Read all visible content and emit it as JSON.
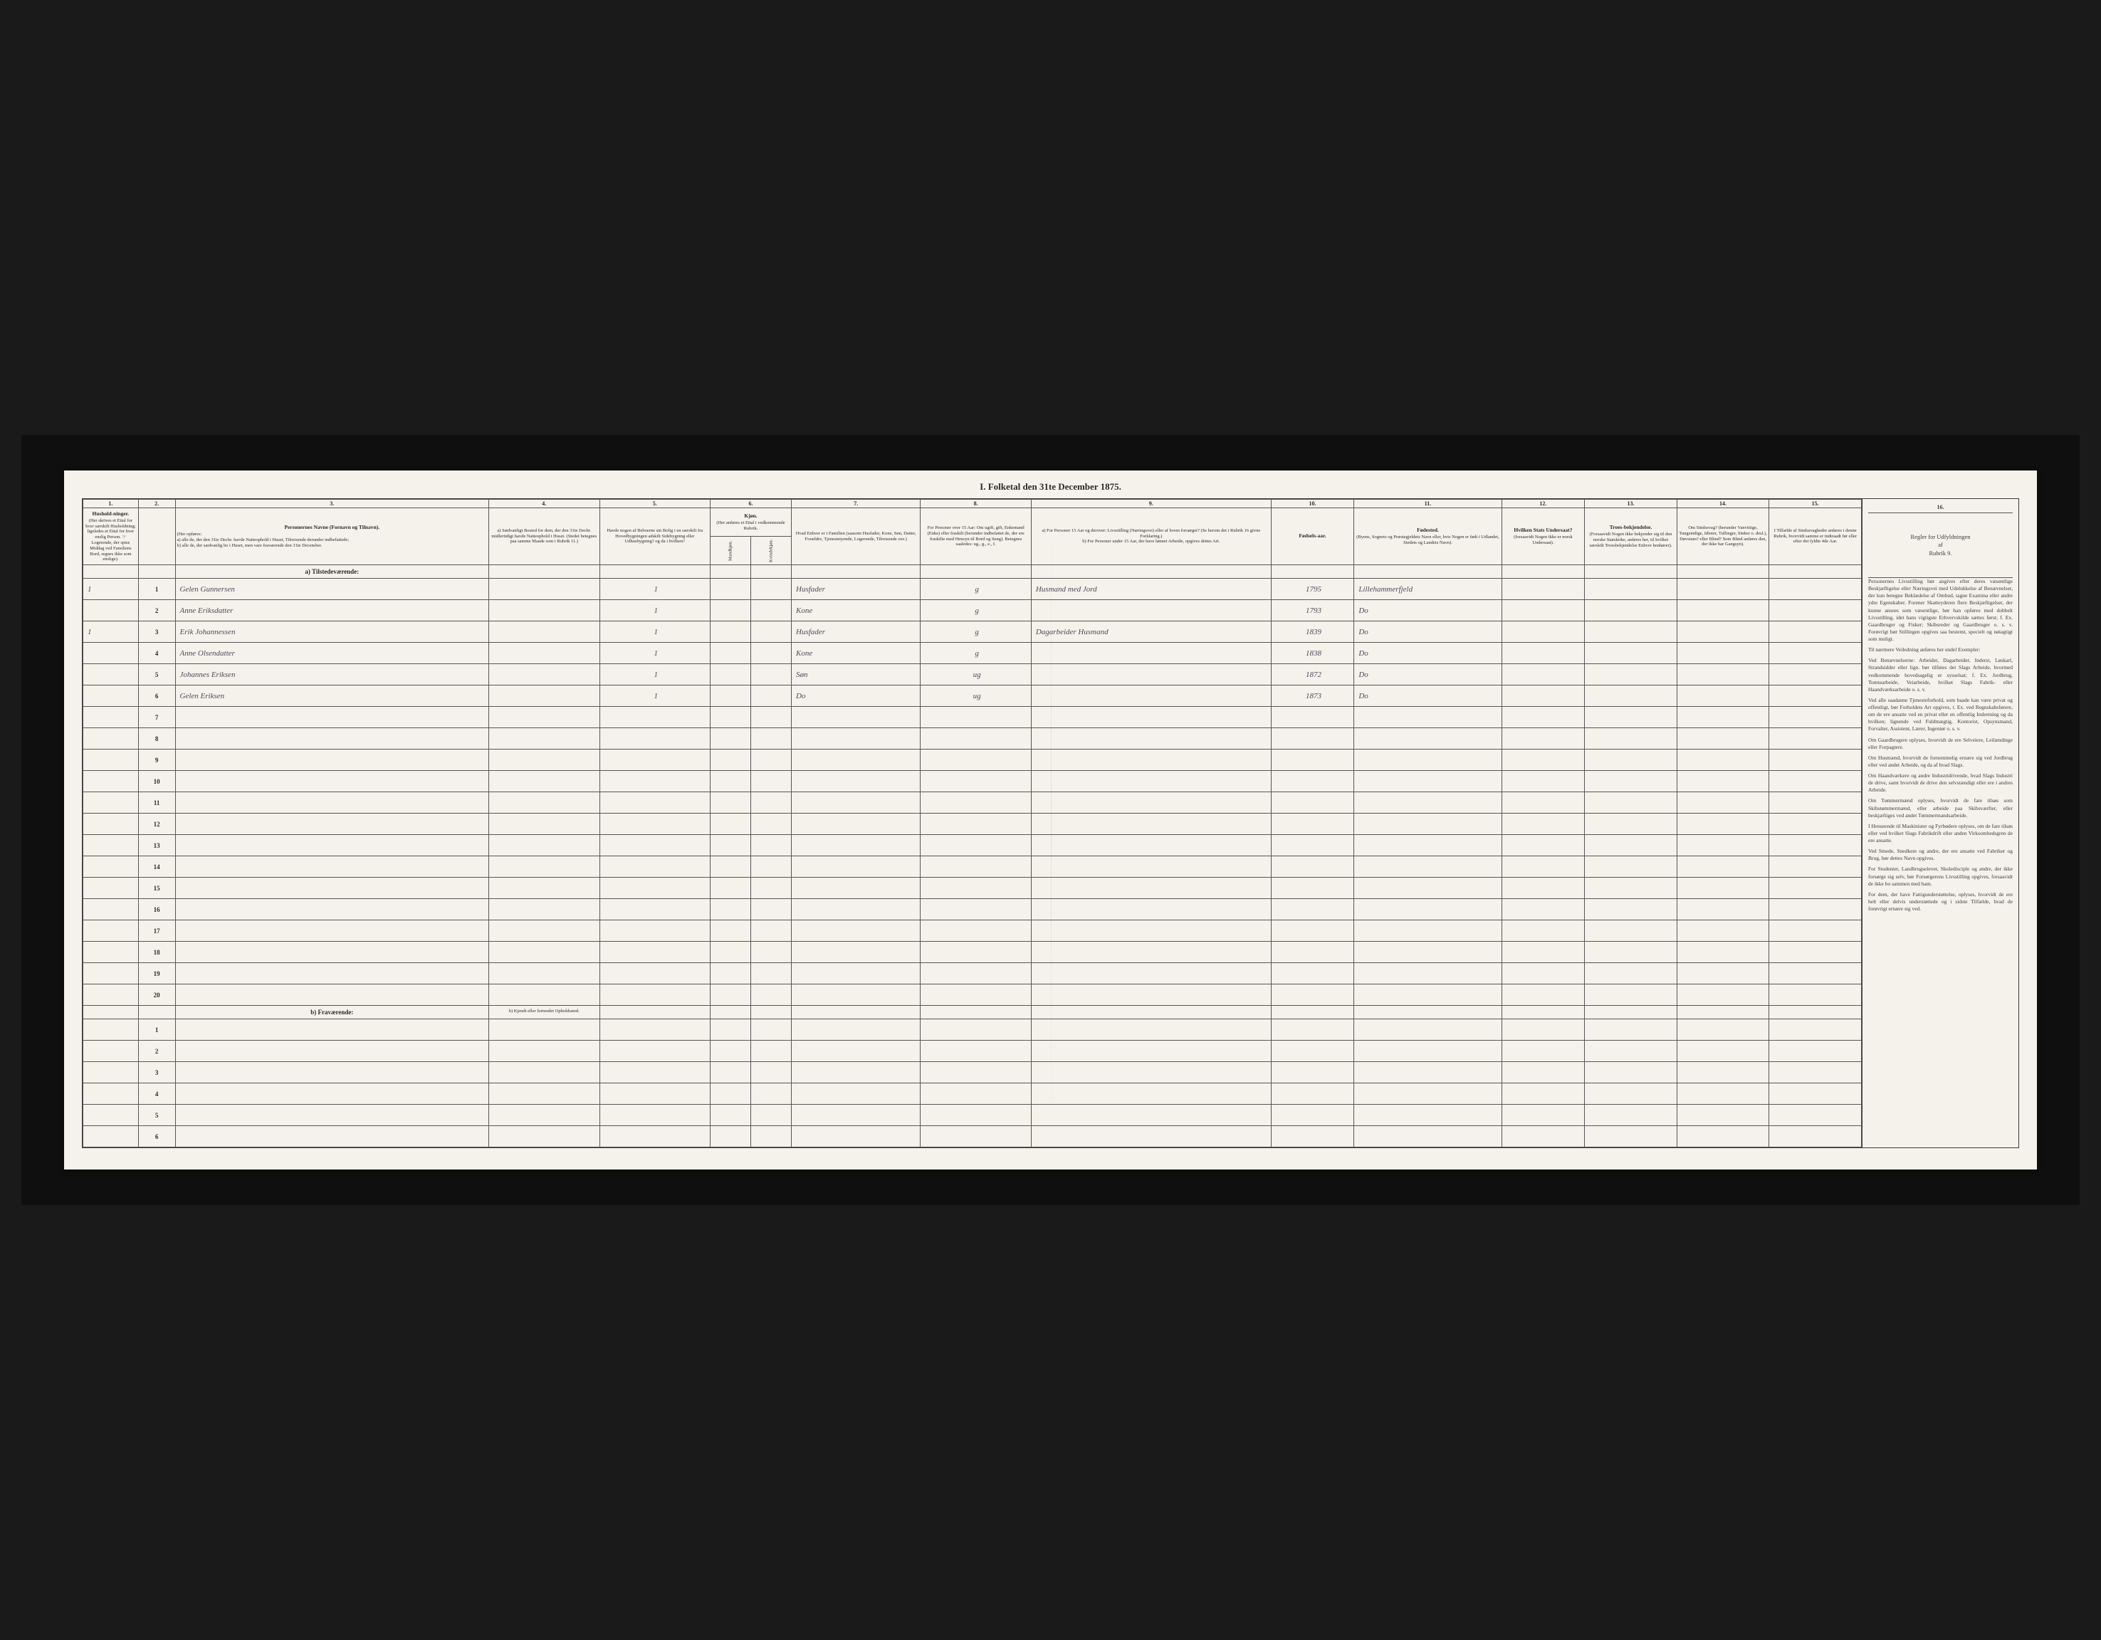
{
  "title": "I. Folketal den 31te December 1875.",
  "colNums": [
    "1.",
    "2.",
    "3.",
    "4.",
    "5.",
    "6.",
    "7.",
    "8.",
    "9.",
    "10.",
    "11.",
    "12.",
    "13.",
    "14.",
    "15.",
    "16."
  ],
  "headers": {
    "c1": {
      "bold": "Hushold-ninger.",
      "text": "(Her skrives et Ettal for hver særskilt Husholdning; ligeledes et Ettal for hver enslig Person. ☞ Logerende, der spise Middag ved Familiens Bord, regnes ikke som enslige)."
    },
    "c2": "",
    "c3": {
      "bold": "Personernes Navne (Fornavn og Tilnavn).",
      "text": "(Her opføres:\na) alle de, der den 31te Decbr. havde Natteophold i Huset, Tilreisende derunder indbefattede;\nb) alle de, der sædvanlig bo i Huset, men vare fraværende den 31te December."
    },
    "c4": "a) Sædvanligt Bosted for dem, der den 31te Decbr. midlertidigt havde Natteophold i Huset. (Stedet betegnes paa samme Maade som i Rubrik 11.)",
    "c5": "Havde nogen af Beboerne sin Bolig i en særskilt fra Hovedbygningen adskilt Sidebygning eller Udhusbygning? og da i hvilken?",
    "c6": {
      "bold": "Kjøn.",
      "text": "(Her anføres et Ettal i vedkommende Rubrik.",
      "sub1": "Mandkjøn.",
      "sub2": "Kvindekjøn."
    },
    "c7": "Hvad Enhver er i Familien (saasom Husfader, Kone, Søn, Datter, Forældre, Tjenestetyende, Logerende, Tilreisende osv.)",
    "c8": "For Personer over 15 Aar: Om ugift, gift, Enkemand (Enke) eller fraskilt (herunder indbefattet de, der ere fraskilte med Hensyn til Bord og Seng). Betegnes saaledes: ug., g., e., f.",
    "c9": "a) For Personer 15 Aar og derover: Livsstilling (Næringsvei) eller af hvem forsørget? (Se herom det i Rubrik 16 givne Forklaring.)\nb) For Personer under 15 Aar, der have lønnet Arbeide, opgives dettes Art.",
    "c10": {
      "bold": "Fødsels-aar."
    },
    "c11": {
      "bold": "Fødested.",
      "text": "(Byens, Sognets og Præstegjeldets Navn eller, hvis Nogen er født i Udlandet, Stedets og Landets Navn)."
    },
    "c12": {
      "bold": "Hvilken Stats Undersaat?",
      "text": "(forsaavidt Nogen ikke er norsk Undersaat)."
    },
    "c13": {
      "bold": "Troes-bekjendelse.",
      "text": "(Forsaavidt Nogen ikke bekjender sig til den norske Statskirke, anføres her, til hvilket særskilt Troesbekjendelse Enhver henhører)."
    },
    "c14": "Om Sindssvag? (herunder Vanvittige, Tungsindige, Idioter, Tullinger, Sinker o. desl.), Døvstum? eller Blind? Som Blind anføres den, der ikke har Gangsyn).",
    "c15": "I Tilfælde af Sindssvagheder anføres i denne Rubrik, hvorvidt samme er indtraadt før eller efter det fyldte 4de Aar.",
    "c16": "Regler for Udfyldningen\naf\nRubrik 9."
  },
  "sectionA": "a) Tilstedeværende:",
  "sectionB": "b) Fraværende:",
  "sectionBCol4": "b) Kjendt eller formodet Opholdssted.",
  "rowsA": [
    {
      "n": "1",
      "hh": "1",
      "name": "Gelen Gunnersen",
      "c5": "1",
      "c7": "Husfader",
      "c8": "g",
      "c9": "Husmand med Jord",
      "c10": "1795",
      "c11": "Lillehammerfjeld"
    },
    {
      "n": "2",
      "hh": "",
      "name": "Anne Eriksdatter",
      "c5": "1",
      "c7": "Kone",
      "c8": "g",
      "c9": "",
      "c10": "1793",
      "c11": "Do"
    },
    {
      "n": "3",
      "hh": "1",
      "name": "Erik Johannessen",
      "c5": "1",
      "c7": "Husfader",
      "c8": "g",
      "c9": "Dagarbeider Husmand",
      "c10": "1839",
      "c11": "Do"
    },
    {
      "n": "4",
      "hh": "",
      "name": "Anne Olsendatter",
      "c5": "1",
      "c7": "Kone",
      "c8": "g",
      "c9": "",
      "c10": "1838",
      "c11": "Do"
    },
    {
      "n": "5",
      "hh": "",
      "name": "Johannes Eriksen",
      "c5": "1",
      "c7": "Søn",
      "c8": "ug",
      "c9": "",
      "c10": "1872",
      "c11": "Do"
    },
    {
      "n": "6",
      "hh": "",
      "name": "Gelen Eriksen",
      "c5": "1",
      "c7": "Do",
      "c8": "ug",
      "c9": "",
      "c10": "1873",
      "c11": "Do"
    },
    {
      "n": "7"
    },
    {
      "n": "8"
    },
    {
      "n": "9"
    },
    {
      "n": "10"
    },
    {
      "n": "11"
    },
    {
      "n": "12"
    },
    {
      "n": "13"
    },
    {
      "n": "14"
    },
    {
      "n": "15"
    },
    {
      "n": "16"
    },
    {
      "n": "17"
    },
    {
      "n": "18"
    },
    {
      "n": "19"
    },
    {
      "n": "20"
    }
  ],
  "rowsB": [
    {
      "n": "1"
    },
    {
      "n": "2"
    },
    {
      "n": "3"
    },
    {
      "n": "4"
    },
    {
      "n": "5"
    },
    {
      "n": "6"
    }
  ],
  "rules": {
    "header": "Regler for Udfyldningen\naf\nRubrik 9.",
    "paras": [
      {
        "head": "",
        "text": "Personernes Livsstilling bør angives efter deres væsentlige Beskjæftigelse eller Næringsvei med Udelukkelse af Benævnelser, der kun betegne Beklædelse af Ombud, tagne Examina eller andre ydre Egenskaber. Forener Skatteyderen flere Beskjæftigelser, der kunne ansees som væsentlige, bør han opføres med dobbelt Livsstilling, idet hans vigtigste Erhvervskilde sættes først; f. Ex. Gaardbruger og Fisker; Skibsreder og Gaardbruger o. s. v. Forøvrigt bør Stillingen opgives saa bestemt, specielt og nøiagtigt som muligt."
      },
      {
        "head": "",
        "text": "Til nærmere Veiledning anføres her endel Exempler:"
      },
      {
        "head": "",
        "text": "Ved Benævnelserne: Arbeider, Dagarbeider, Inderst, Løskarl, Strandsidder eller lign. bør tilføies det Slags Arbeide, hvormed vedkommende hovedsagelig er sysselsat; f. Ex. Jordbrug, Tomtearbeide, Veiarbeide, hvilket Slags Fabrik- eller Haandværksarbeide o. s. v."
      },
      {
        "head": "",
        "text": "Ved alle saadanne Tjenesteforhold, som baade kan være privat og offentligt, bør Forholdets Art opgives, t. Ex. ved Regnskabsførere, om de ere ansatte ved en privat eller en offentlig Indretning og da hvilken; lignende ved Fuldmægtig, Kontorist, Opsynsmand, Forvalter, Assistent, Lærer, Ingeniør o. s. v."
      },
      {
        "head": "",
        "text": "Om Gaardbrugere oplyses, hvorvidt de ere Selveiere, Leilændinge eller Forpagtere."
      },
      {
        "head": "",
        "text": "Om Husmænd, hvorvidt de fornemmelig ernære sig ved Jordbrug eller ved andet Arbeide, og da af hvad Slags."
      },
      {
        "head": "",
        "text": "Om Haandværkere og andre Industridrivende, hvad Slags Industri de drive, samt hvorvidt de drive den selvstændigt eller ere i andres Arbeide."
      },
      {
        "head": "",
        "text": "Om Tømmermænd oplyses, hvorvidt de fare tilsøs som Skibstømmermænd, eller arbeide paa Skibsværfter, eller beskjæftiges ved andet Tømmermandsarbeide."
      },
      {
        "head": "",
        "text": "I Henseende til Maskinister og Fyrbødere oplyses, om de fare tilsøs eller ved hvilket Slags Fabrikdrift eller anden Virksomhedsgren de ere ansatte."
      },
      {
        "head": "",
        "text": "Ved Smede, Snedkere og andre, der ere ansatte ved Fabriker og Brug, bør dettes Navn opgives."
      },
      {
        "head": "",
        "text": "For Studenter, Landbrugselever, Skoledisciple og andre, der ikke forsørge sig selv, bør Forsørgerens Livsstilling opgives, forsaavidt de ikke bo sammen med ham."
      },
      {
        "head": "",
        "text": "For dem, der have Fattigunderstøttelse, oplyses, hvorvidt de ere helt eller delvis understøttede og i sidste Tilfælde, hvad de forøvrigt ernære sig ved."
      }
    ]
  },
  "colors": {
    "paper": "#f5f2eb",
    "ink": "#2a2a2a",
    "border": "#3a3a3a",
    "handwriting": "#4a4a5a",
    "background": "#1a1a1a"
  }
}
